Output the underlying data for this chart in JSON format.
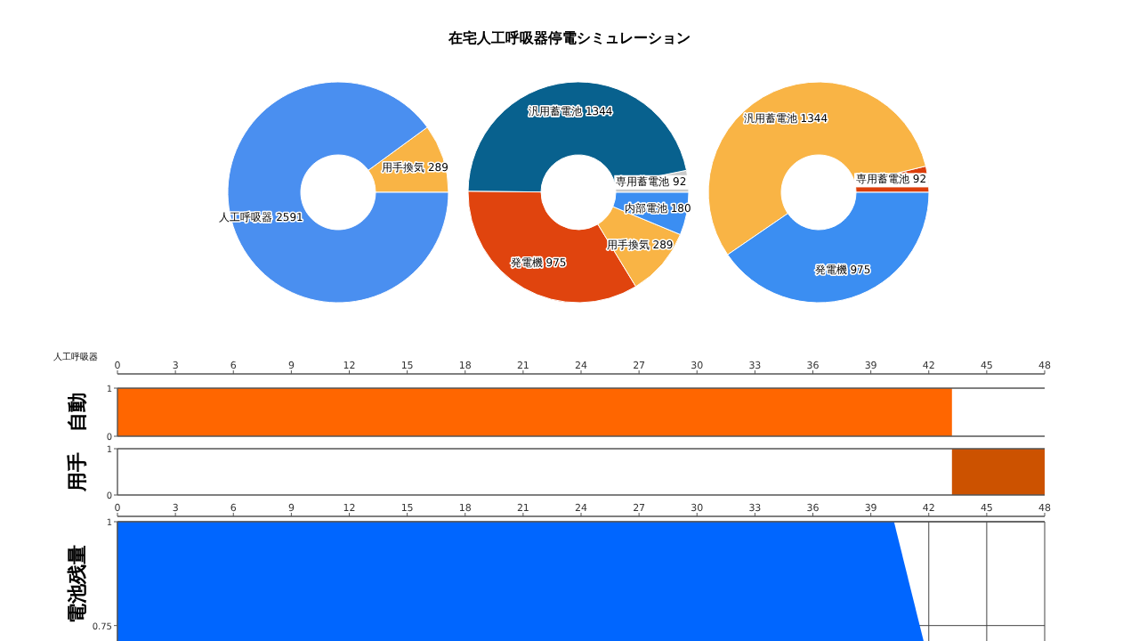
{
  "chart_data": [
    {
      "type": "other",
      "title": "在宅人工呼吸器停電シミュレーション"
    },
    {
      "type": "donut",
      "categories": [
        "用手換気",
        "人工呼吸器"
      ],
      "values": [
        289,
        2591
      ],
      "colors": [
        "#f9b445",
        "#4a8ff0"
      ],
      "data_labels": true
    },
    {
      "type": "donut",
      "categories": [
        "専用蓄電池",
        "汎用蓄電池",
        "発電機",
        "用手換気",
        "内部電池"
      ],
      "values": [
        92,
        1344,
        975,
        289,
        180
      ],
      "colors": [
        "#c9c9c9",
        "#08618e",
        "#e0440e",
        "#f9b445",
        "#3b8ef2"
      ],
      "data_labels": true
    },
    {
      "type": "donut",
      "categories": [
        "専用蓄電池",
        "汎用蓄電池",
        "発電機"
      ],
      "values": [
        92,
        1344,
        975
      ],
      "colors": [
        "#dc3f0c",
        "#f9b445",
        "#3b8ef2"
      ],
      "data_labels": true
    },
    {
      "type": "area",
      "ylabel": "自動",
      "annotations": [
        "人工呼吸器"
      ],
      "x": [
        0,
        43.2
      ],
      "values": [
        1,
        1
      ],
      "color": "#ff6600",
      "xlim": [
        0,
        48
      ],
      "xticks": [
        0,
        3,
        6,
        9,
        12,
        15,
        18,
        21,
        24,
        27,
        30,
        33,
        36,
        39,
        42,
        45,
        48
      ],
      "ylim": [
        0,
        1
      ],
      "yticks": [
        0,
        1
      ]
    },
    {
      "type": "area",
      "ylabel": "用手",
      "x": [
        43.2,
        48
      ],
      "values": [
        1,
        1
      ],
      "color": "#cc5200",
      "xlim": [
        0,
        48
      ],
      "ylim": [
        0,
        1
      ],
      "yticks": [
        0,
        1
      ],
      "tick_labels": "y"
    },
    {
      "type": "area",
      "ylabel": "電池残量",
      "x": [
        0,
        40.2,
        41.8
      ],
      "values": [
        1,
        1,
        0.7
      ],
      "color": "#0066ff",
      "xlim": [
        0,
        48
      ],
      "xticks": [
        0,
        3,
        6,
        9,
        12,
        15,
        18,
        21,
        24,
        27,
        30,
        33,
        36,
        39,
        42,
        45,
        48
      ],
      "ylim": [
        0.7,
        1
      ],
      "yticks": [
        0.75,
        1
      ],
      "grid": true
    }
  ]
}
